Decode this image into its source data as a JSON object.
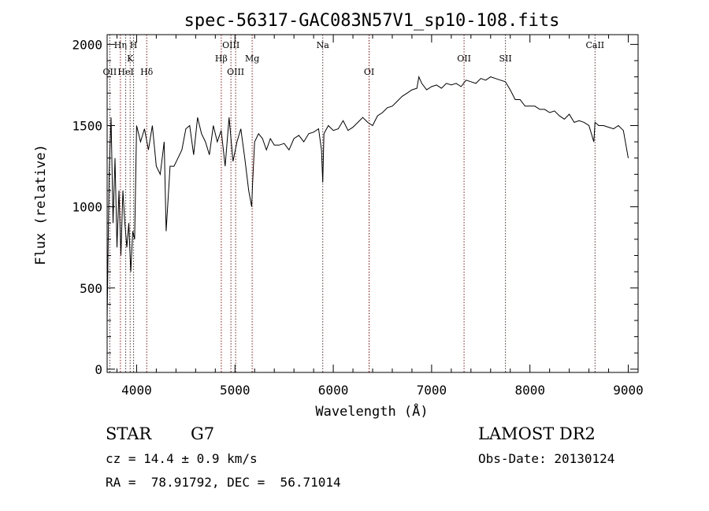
{
  "chart_data": {
    "type": "line",
    "title": "spec-56317-GAC083N57V1_sp10-108.fits",
    "xlabel": "Wavelength (Å)",
    "ylabel": "Flux (relative)",
    "xlim": [
      3700,
      9100
    ],
    "ylim": [
      -20,
      2060
    ],
    "xticks": [
      4000,
      5000,
      6000,
      7000,
      8000,
      9000
    ],
    "xtick_labels": [
      "4000",
      "5000",
      "6000",
      "7000",
      "8000",
      "9000"
    ],
    "yticks": [
      0,
      500,
      1000,
      1500,
      2000
    ],
    "ytick_labels": [
      "0",
      "500",
      "1000",
      "1500",
      "2000"
    ],
    "grid": false,
    "colors": {
      "spectrum": "#000000",
      "lines": "#8b1a1a"
    },
    "spectral_lines": [
      {
        "label": "OII",
        "wavelength": 3727,
        "row": 3
      },
      {
        "label": "Hη",
        "wavelength": 3835,
        "row": 1
      },
      {
        "label": "HeI",
        "wavelength": 3889,
        "row": 3
      },
      {
        "label": "K",
        "wavelength": 3934,
        "row": 2
      },
      {
        "label": "H",
        "wavelength": 3969,
        "row": 1
      },
      {
        "label": "Hδ",
        "wavelength": 4102,
        "row": 3
      },
      {
        "label": "Hβ",
        "wavelength": 4861,
        "row": 2
      },
      {
        "label": "OIII",
        "wavelength": 4959,
        "row": 1
      },
      {
        "label": "OIII",
        "wavelength": 5007,
        "row": 3
      },
      {
        "label": "Mg",
        "wavelength": 5175,
        "row": 2
      },
      {
        "label": "Na",
        "wavelength": 5893,
        "row": 1
      },
      {
        "label": "OI",
        "wavelength": 6364,
        "row": 3
      },
      {
        "label": "OII",
        "wavelength": 7330,
        "row": 2
      },
      {
        "label": "SII",
        "wavelength": 7751,
        "row": 2
      },
      {
        "label": "CaII",
        "wavelength": 8662,
        "row": 1
      }
    ],
    "series": [
      {
        "x": [
          3700,
          3720,
          3740,
          3760,
          3780,
          3800,
          3820,
          3840,
          3860,
          3880,
          3900,
          3920,
          3940,
          3960,
          3980,
          4000,
          4040,
          4080,
          4120,
          4160,
          4200,
          4240,
          4280,
          4300,
          4340,
          4380,
          4420,
          4460,
          4500,
          4540,
          4580,
          4620,
          4660,
          4700,
          4740,
          4780,
          4820,
          4860,
          4900,
          4940,
          4980,
          5020,
          5060,
          5100,
          5140,
          5170,
          5180,
          5200,
          5240,
          5280,
          5320,
          5360,
          5400,
          5450,
          5500,
          5550,
          5600,
          5650,
          5700,
          5750,
          5800,
          5850,
          5880,
          5893,
          5905,
          5950,
          6000,
          6050,
          6100,
          6150,
          6200,
          6250,
          6300,
          6350,
          6400,
          6450,
          6500,
          6550,
          6600,
          6650,
          6700,
          6750,
          6800,
          6850,
          6870,
          6900,
          6950,
          7000,
          7050,
          7100,
          7150,
          7200,
          7250,
          7300,
          7350,
          7400,
          7450,
          7500,
          7550,
          7600,
          7650,
          7700,
          7750,
          7800,
          7850,
          7900,
          7950,
          8000,
          8050,
          8100,
          8150,
          8200,
          8250,
          8300,
          8350,
          8400,
          8450,
          8500,
          8550,
          8600,
          8650,
          8662,
          8700,
          8750,
          8800,
          8850,
          8900,
          8950,
          9000
        ],
        "y": [
          300,
          1200,
          1550,
          900,
          1300,
          750,
          1100,
          700,
          1100,
          900,
          750,
          900,
          600,
          850,
          800,
          1500,
          1400,
          1480,
          1350,
          1500,
          1250,
          1200,
          1400,
          850,
          1250,
          1250,
          1300,
          1350,
          1480,
          1500,
          1320,
          1550,
          1450,
          1400,
          1320,
          1500,
          1400,
          1470,
          1250,
          1550,
          1280,
          1400,
          1480,
          1300,
          1100,
          1000,
          1150,
          1400,
          1450,
          1420,
          1350,
          1420,
          1380,
          1380,
          1390,
          1350,
          1420,
          1440,
          1400,
          1450,
          1460,
          1480,
          1350,
          1150,
          1450,
          1500,
          1470,
          1480,
          1530,
          1470,
          1490,
          1520,
          1550,
          1520,
          1500,
          1560,
          1580,
          1610,
          1620,
          1650,
          1680,
          1700,
          1720,
          1730,
          1800,
          1760,
          1720,
          1740,
          1750,
          1730,
          1760,
          1750,
          1760,
          1740,
          1780,
          1770,
          1760,
          1790,
          1780,
          1800,
          1790,
          1780,
          1770,
          1720,
          1660,
          1660,
          1620,
          1620,
          1620,
          1600,
          1600,
          1580,
          1590,
          1560,
          1540,
          1570,
          1520,
          1530,
          1520,
          1500,
          1400,
          1520,
          1500,
          1500,
          1490,
          1480,
          1500,
          1470,
          1300
        ]
      }
    ]
  },
  "info": {
    "object_class": "STAR",
    "subclass": "G7",
    "survey": "LAMOST DR2",
    "cz": "cz = 14.4 ± 0.9 km/s",
    "obs_date": "Obs-Date: 20130124",
    "coords": "RA =  78.91792, DEC =  56.71014"
  }
}
